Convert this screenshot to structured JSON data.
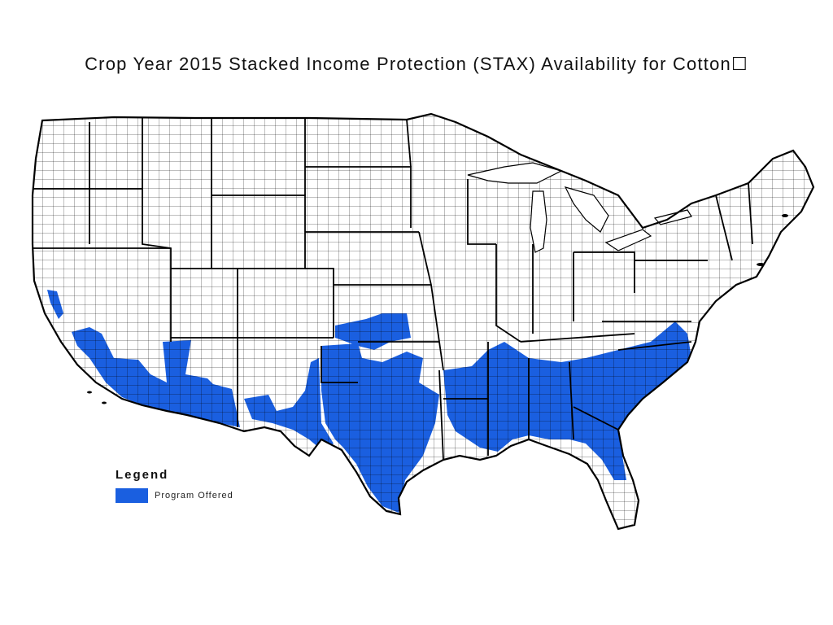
{
  "title": "Crop Year 2015 Stacked Income Protection (STAX) Availability for Cotton☐",
  "colors": {
    "program_offered": "#1a5fe0",
    "county_outline": "#000000",
    "land": "#ffffff"
  },
  "legend": {
    "title": "Legend",
    "items": [
      {
        "label": "Program Offered",
        "color": "#1a5fe0"
      }
    ]
  }
}
